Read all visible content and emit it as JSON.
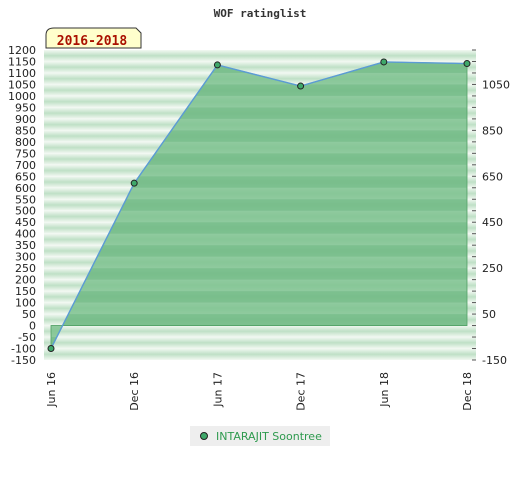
{
  "chart_data": {
    "type": "area",
    "title": "WOF ratinglist",
    "period_label": "2016-2018",
    "categories": [
      "Jun 16",
      "Dec 16",
      "Jun 17",
      "Dec 17",
      "Jun 18",
      "Dec 18"
    ],
    "series": [
      {
        "name": "INTARAJIT Soontree",
        "values": [
          -100,
          620,
          1135,
          1043,
          1148,
          1141
        ]
      }
    ],
    "left_axis": {
      "ylim": [
        -150,
        1200
      ],
      "ticks": [
        -150,
        -100,
        -50,
        0,
        50,
        100,
        150,
        200,
        250,
        300,
        350,
        400,
        450,
        500,
        550,
        600,
        650,
        700,
        750,
        800,
        850,
        900,
        950,
        1000,
        1050,
        1100,
        1150,
        1200
      ]
    },
    "right_axis": {
      "ylim": [
        -150,
        1200
      ],
      "ticks": [
        -150,
        50,
        250,
        450,
        650,
        850,
        1050
      ]
    },
    "legend_position": "bottom-center",
    "colors": {
      "line": "#5b9bd5",
      "fill": "#7ec28f",
      "marker": "#3fa86a",
      "legend_text": "#2e9a4e"
    }
  }
}
